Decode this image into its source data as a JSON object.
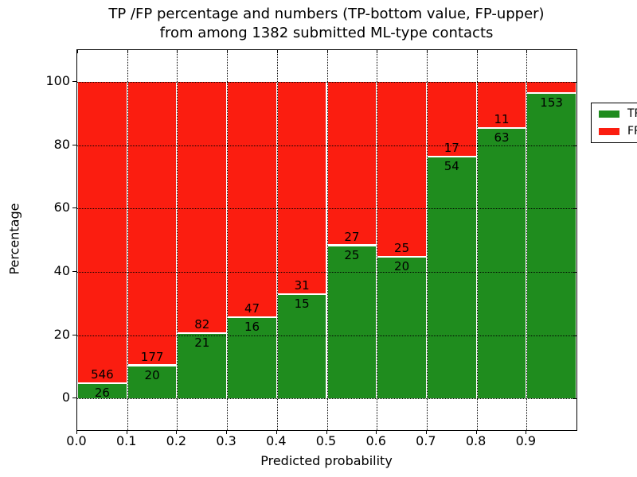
{
  "title": {
    "line1": "TP /FP percentage and numbers (TP-bottom value, FP-upper)",
    "line2": "from among 1382 submitted ML-type contacts"
  },
  "axes": {
    "xlabel": "Predicted probability",
    "ylabel": "Percentage",
    "x_tick_labels": [
      "0.0",
      "0.1",
      "0.2",
      "0.3",
      "0.4",
      "0.5",
      "0.6",
      "0.7",
      "0.8",
      "0.9"
    ],
    "y_tick_labels": [
      "0",
      "20",
      "40",
      "60",
      "80",
      "100"
    ],
    "y_tick_values": [
      0,
      20,
      40,
      60,
      80,
      100
    ],
    "xlim": [
      0.0,
      1.0
    ],
    "ylim": [
      -10,
      110
    ],
    "grid_style": "dotted"
  },
  "colors": {
    "tp": "#1f8c1e",
    "fp": "#fb1d10",
    "grid": "#000000",
    "background": "#ffffff"
  },
  "legend": {
    "entries": [
      {
        "label": "TP",
        "color": "#1f8c1e"
      },
      {
        "label": "FP",
        "color": "#fb1d10"
      }
    ]
  },
  "chart_data": {
    "type": "bar",
    "stacked": true,
    "normalized_to_100_percent": true,
    "title": "TP /FP percentage and numbers (TP-bottom value, FP-upper) from among 1382 submitted ML-type contacts",
    "xlabel": "Predicted probability",
    "ylabel": "Percentage",
    "x_bins": [
      "0.0-0.1",
      "0.1-0.2",
      "0.2-0.3",
      "0.3-0.4",
      "0.4-0.5",
      "0.5-0.6",
      "0.6-0.7",
      "0.7-0.8",
      "0.8-0.9",
      "0.9-1.0"
    ],
    "series": [
      {
        "name": "TP",
        "color": "#1f8c1e",
        "counts": [
          26,
          20,
          21,
          16,
          15,
          25,
          20,
          54,
          63,
          153
        ],
        "count_labels": [
          "26",
          "20",
          "21",
          "16",
          "15",
          "25",
          "20",
          "54",
          "63",
          "153"
        ],
        "pct_of_bin": [
          4.5,
          10.2,
          20.4,
          25.4,
          32.6,
          48.1,
          44.4,
          76.1,
          85.1,
          96.2
        ]
      },
      {
        "name": "FP",
        "color": "#fb1d10",
        "counts": [
          546,
          177,
          82,
          47,
          31,
          27,
          25,
          17,
          11,
          null
        ],
        "count_labels": [
          "546",
          "177",
          "82",
          "47",
          "31",
          "27",
          "25",
          "17",
          "11",
          ""
        ],
        "note_on_last_label": "label hidden behind legend in source image"
      }
    ],
    "ylim": [
      -10,
      110
    ],
    "legend_position": "upper right",
    "grid": true
  }
}
